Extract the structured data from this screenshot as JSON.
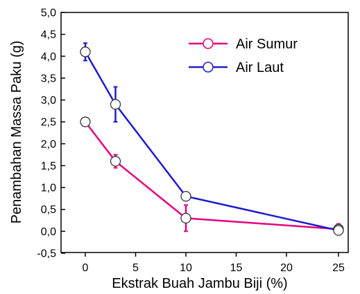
{
  "chart_data": {
    "type": "line",
    "title": "",
    "xlabel": "Ekstrak Buah Jambu Biji (%)",
    "ylabel": "Penambahan Massa Paku (g)",
    "x_axis_note": "broken axis between 10 and 25",
    "x_ticks": [
      "0",
      "5",
      "10",
      "15",
      "20",
      "25"
    ],
    "y_ticks": [
      "-0,5",
      "0,0",
      "0,5",
      "1,0",
      "1,5",
      "2,0",
      "2,5",
      "3,0",
      "3,5",
      "4,0",
      "4,5",
      "5,0"
    ],
    "ylim": [
      -0.5,
      5.0
    ],
    "grid": false,
    "legend_position": "top-right",
    "series": [
      {
        "name": "Air Sumur",
        "color": "#e6007e",
        "points": [
          {
            "x": 0,
            "y": 2.5,
            "err": 0.08
          },
          {
            "x": 3,
            "y": 1.6,
            "err": 0.15
          },
          {
            "x": 10,
            "y": 0.3,
            "err": 0.3
          },
          {
            "x": 25,
            "y": 0.05,
            "err": 0.12
          }
        ]
      },
      {
        "name": "Air Laut",
        "color": "#1c1ccf",
        "points": [
          {
            "x": 0,
            "y": 4.1,
            "err": 0.2
          },
          {
            "x": 3,
            "y": 2.9,
            "err": 0.4
          },
          {
            "x": 10,
            "y": 0.8,
            "err": 0.1
          },
          {
            "x": 25,
            "y": 0.02,
            "err": 0.1
          }
        ]
      }
    ]
  }
}
